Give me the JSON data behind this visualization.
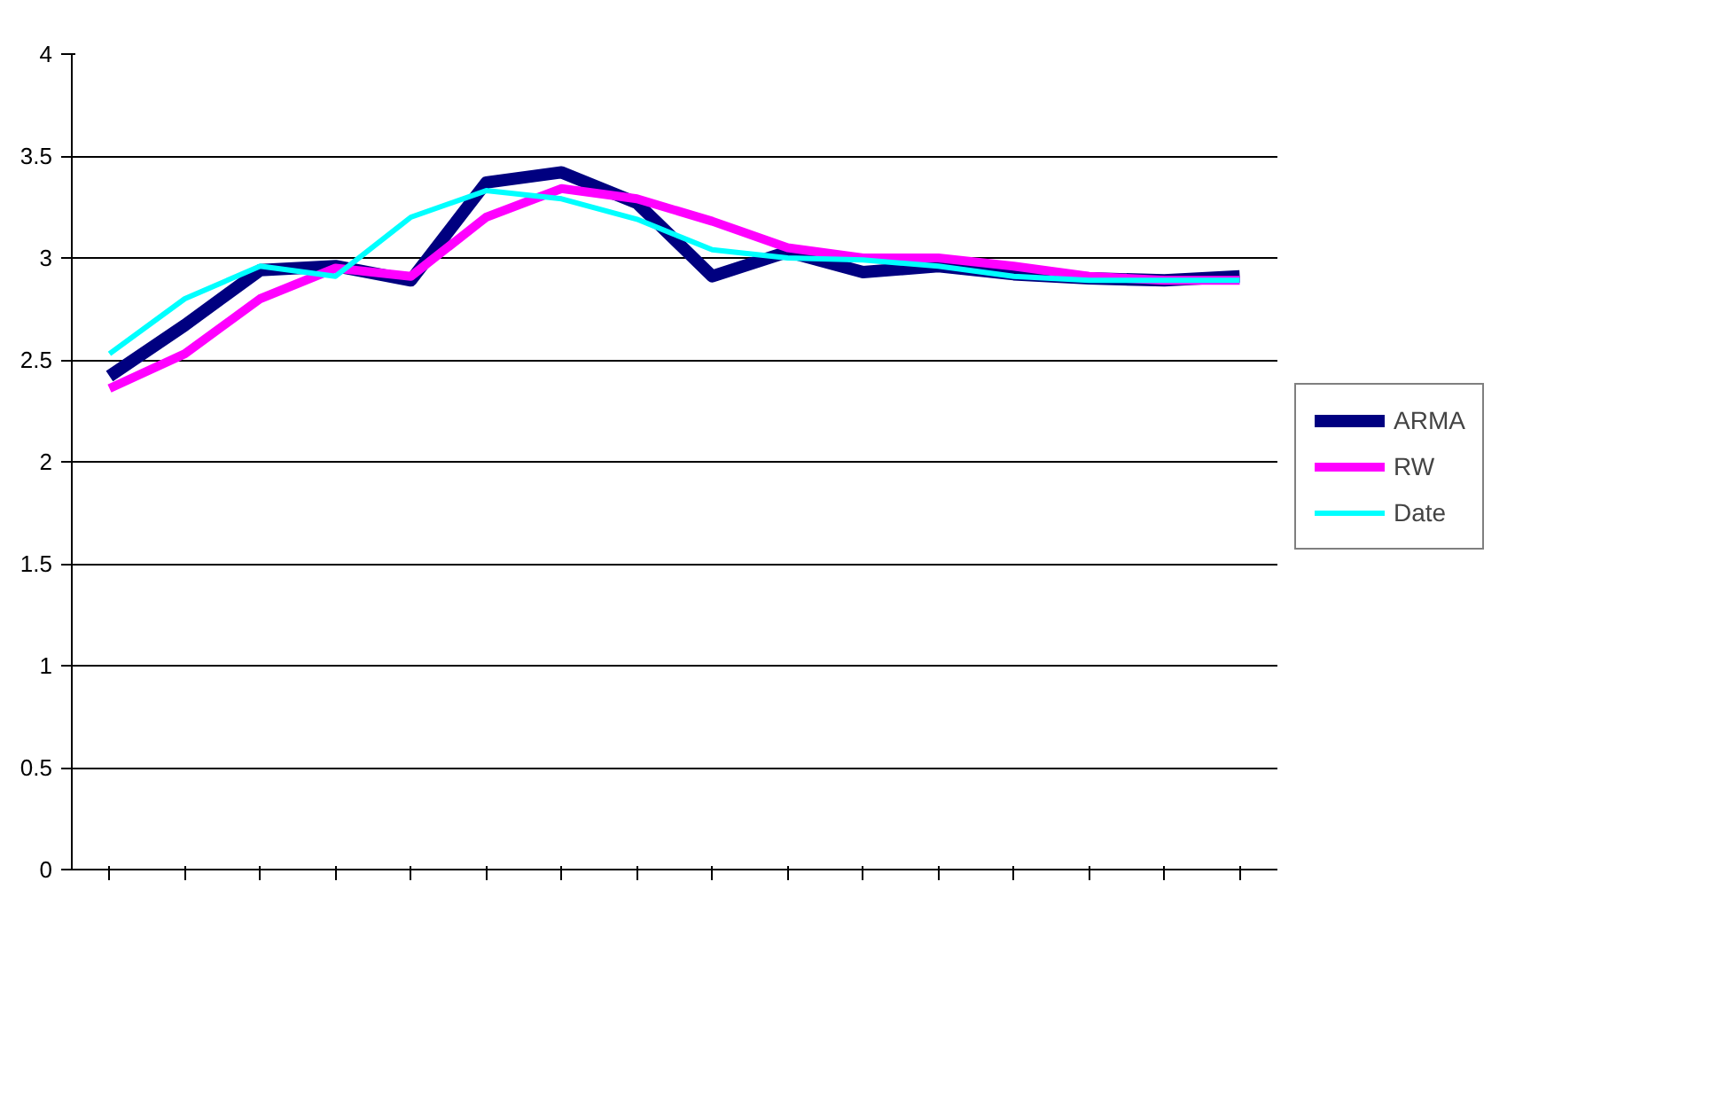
{
  "chart_data": {
    "type": "line",
    "categories": [
      null,
      null,
      null,
      null,
      null,
      null,
      null,
      null,
      null,
      null,
      null,
      null,
      null,
      null,
      null,
      null
    ],
    "series": [
      {
        "name": "ARMA",
        "color": "#000080",
        "values": [
          2.42,
          2.67,
          2.94,
          2.96,
          2.89,
          3.37,
          3.42,
          3.27,
          2.91,
          3.03,
          2.93,
          2.96,
          2.92,
          2.9,
          2.89,
          2.91
        ]
      },
      {
        "name": "RW",
        "color": "#ff00ff",
        "values": [
          2.36,
          2.53,
          2.8,
          2.95,
          2.91,
          3.2,
          3.34,
          3.29,
          3.18,
          3.05,
          3.0,
          3.0,
          2.96,
          2.91,
          2.89,
          2.89
        ]
      },
      {
        "name": "Date",
        "color": "#00ffff",
        "values": [
          2.53,
          2.8,
          2.96,
          2.91,
          3.2,
          3.33,
          3.29,
          3.19,
          3.04,
          3.0,
          2.99,
          2.96,
          2.91,
          2.89,
          2.89,
          2.89
        ]
      }
    ],
    "ylim": [
      0,
      4
    ],
    "yticks": [
      0,
      0.5,
      1,
      1.5,
      2,
      2.5,
      3,
      3.5,
      4
    ],
    "grid": "y",
    "legend": "right",
    "marker": "none",
    "line_style": "solid"
  }
}
